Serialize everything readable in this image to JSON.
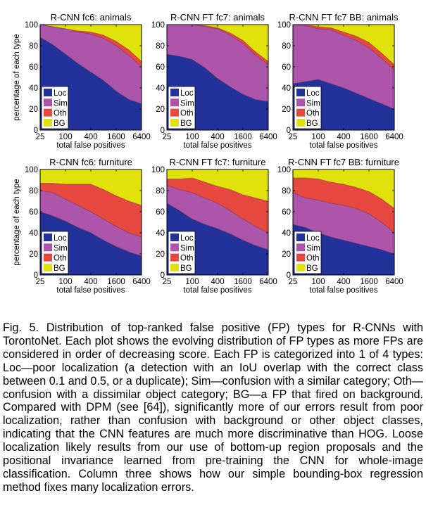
{
  "figure": {
    "caption": "Fig. 5. Distribution of top-ranked false positive (FP) types for R-CNNs with TorontoNet. Each plot shows the evolving distribution of FP types as more FPs are considered in order of decreasing score. Each FP is categorized into 1 of 4 types: Loc—poor localization (a detection with an IoU overlap with the correct class between 0.1 and 0.5, or a duplicate); Sim—confusion with a similar category; Oth—confusion with a dissimilar object category; BG—a FP that fired on background. Compared with DPM (see [64]), significantly more of our errors result from poor localization, rather than confusion with background or other object classes, indicating that the CNN features are much more discriminative than HOG. Loose localization likely results from our use of bottom-up region proposals and the positional invariance learned from pre-training the CNN for whole-image classification. Column three shows how our simple bounding-box regression method fixes many localization errors."
  },
  "colors": {
    "Loc": "#22329a",
    "Sim": "#ad55aa",
    "Oth": "#e6473e",
    "BG": "#e1e10b"
  },
  "chart_data": [
    {
      "type": "area",
      "title": "R-CNN fc6: animals",
      "xlabel": "total false positives",
      "ylabel": "percentage of each type",
      "x": [
        25,
        50,
        100,
        200,
        400,
        800,
        1600,
        3200,
        6400
      ],
      "x_scale": "log",
      "xticks": [
        25,
        100,
        400,
        1600,
        6400
      ],
      "xtick_labels": [
        "25",
        "100",
        "400",
        "1600",
        "6400"
      ],
      "ylim": [
        0,
        100
      ],
      "yticks": [
        0,
        20,
        40,
        60,
        80,
        100
      ],
      "legend": {
        "position": "bottom-left",
        "entries": [
          "Loc",
          "Sim",
          "Oth",
          "BG"
        ]
      },
      "series": [
        {
          "name": "Loc",
          "values": [
            88,
            81,
            72,
            63,
            55,
            47,
            37,
            29,
            25
          ]
        },
        {
          "name": "Sim",
          "values": [
            12,
            17,
            24,
            30,
            36,
            40,
            43,
            42,
            35
          ]
        },
        {
          "name": "Oth",
          "values": [
            0,
            0,
            0,
            1,
            2,
            3,
            4,
            5,
            5
          ]
        },
        {
          "name": "BG",
          "values": [
            0,
            2,
            4,
            6,
            7,
            10,
            16,
            24,
            35
          ]
        }
      ]
    },
    {
      "type": "area",
      "title": "R-CNN FT fc7: animals",
      "xlabel": "total false positives",
      "ylabel": "",
      "x": [
        25,
        50,
        100,
        200,
        400,
        800,
        1600,
        3200,
        6400
      ],
      "x_scale": "log",
      "xticks": [
        25,
        100,
        400,
        1600,
        6400
      ],
      "xtick_labels": [
        "25",
        "100",
        "400",
        "1600",
        "6400"
      ],
      "ylim": [
        0,
        100
      ],
      "yticks": [
        0,
        20,
        40,
        60,
        80,
        100
      ],
      "legend": {
        "position": "bottom-left",
        "entries": [
          "Loc",
          "Sim",
          "Oth",
          "BG"
        ]
      },
      "series": [
        {
          "name": "Loc",
          "values": [
            72,
            70,
            67,
            59,
            49,
            41,
            34,
            29,
            27
          ]
        },
        {
          "name": "Sim",
          "values": [
            28,
            30,
            33,
            39,
            47,
            49,
            48,
            42,
            35
          ]
        },
        {
          "name": "Oth",
          "values": [
            0,
            0,
            0,
            1,
            1,
            2,
            3,
            3,
            3
          ]
        },
        {
          "name": "BG",
          "values": [
            0,
            0,
            0,
            1,
            3,
            8,
            15,
            26,
            35
          ]
        }
      ]
    },
    {
      "type": "area",
      "title": "R-CNN FT fc7 BB: animals",
      "xlabel": "total false positives",
      "ylabel": "",
      "x": [
        25,
        50,
        100,
        200,
        400,
        800,
        1600,
        3200,
        6400
      ],
      "x_scale": "log",
      "xticks": [
        25,
        100,
        400,
        1600,
        6400
      ],
      "xtick_labels": [
        "25",
        "100",
        "400",
        "1600",
        "6400"
      ],
      "ylim": [
        0,
        100
      ],
      "yticks": [
        0,
        20,
        40,
        60,
        80,
        100
      ],
      "legend": {
        "position": "bottom-left",
        "entries": [
          "Loc",
          "Sim",
          "Oth",
          "BG"
        ]
      },
      "series": [
        {
          "name": "Loc",
          "values": [
            44,
            46,
            48,
            44,
            40,
            35,
            30,
            25,
            20
          ]
        },
        {
          "name": "Sim",
          "values": [
            56,
            53,
            48,
            51,
            50,
            50,
            48,
            43,
            37
          ]
        },
        {
          "name": "Oth",
          "values": [
            0,
            1,
            2,
            2,
            3,
            4,
            5,
            5,
            5
          ]
        },
        {
          "name": "BG",
          "values": [
            0,
            0,
            2,
            3,
            7,
            11,
            17,
            27,
            38
          ]
        }
      ]
    },
    {
      "type": "area",
      "title": "R-CNN fc6: furniture",
      "xlabel": "total false positives",
      "ylabel": "percentage of each type",
      "x": [
        25,
        50,
        100,
        200,
        400,
        800,
        1600,
        3200,
        6400
      ],
      "x_scale": "log",
      "xticks": [
        25,
        100,
        400,
        1600,
        6400
      ],
      "xtick_labels": [
        "25",
        "100",
        "400",
        "1600",
        "6400"
      ],
      "ylim": [
        0,
        100
      ],
      "yticks": [
        0,
        20,
        40,
        60,
        80,
        100
      ],
      "legend": {
        "position": "bottom-left",
        "entries": [
          "Loc",
          "Sim",
          "Oth",
          "BG"
        ]
      },
      "series": [
        {
          "name": "Loc",
          "values": [
            60,
            56,
            51,
            45,
            40,
            33,
            27,
            22,
            18
          ]
        },
        {
          "name": "Sim",
          "values": [
            20,
            22,
            21,
            21,
            20,
            20,
            19,
            18,
            18
          ]
        },
        {
          "name": "Oth",
          "values": [
            7,
            9,
            14,
            20,
            26,
            28,
            29,
            30,
            30
          ]
        },
        {
          "name": "BG",
          "values": [
            13,
            13,
            14,
            14,
            14,
            19,
            25,
            30,
            34
          ]
        }
      ]
    },
    {
      "type": "area",
      "title": "R-CNN FT fc7: furniture",
      "xlabel": "total false positives",
      "ylabel": "",
      "x": [
        25,
        50,
        100,
        200,
        400,
        800,
        1600,
        3200,
        6400
      ],
      "x_scale": "log",
      "xticks": [
        25,
        100,
        400,
        1600,
        6400
      ],
      "xtick_labels": [
        "25",
        "100",
        "400",
        "1600",
        "6400"
      ],
      "ylim": [
        0,
        100
      ],
      "yticks": [
        0,
        20,
        40,
        60,
        80,
        100
      ],
      "legend": {
        "position": "bottom-left",
        "entries": [
          "Loc",
          "Sim",
          "Oth",
          "BG"
        ]
      },
      "series": [
        {
          "name": "Loc",
          "values": [
            68,
            61,
            53,
            48,
            44,
            39,
            33,
            28,
            24
          ]
        },
        {
          "name": "Sim",
          "values": [
            17,
            20,
            25,
            25,
            24,
            22,
            20,
            18,
            16
          ]
        },
        {
          "name": "Oth",
          "values": [
            6,
            10,
            14,
            15,
            16,
            20,
            23,
            27,
            30
          ]
        },
        {
          "name": "BG",
          "values": [
            9,
            9,
            8,
            12,
            16,
            19,
            24,
            27,
            30
          ]
        }
      ]
    },
    {
      "type": "area",
      "title": "R-CNN FT fc7 BB: furniture",
      "xlabel": "total false positives",
      "ylabel": "",
      "x": [
        25,
        50,
        100,
        200,
        400,
        800,
        1600,
        3200,
        6400
      ],
      "x_scale": "log",
      "xticks": [
        25,
        100,
        400,
        1600,
        6400
      ],
      "xtick_labels": [
        "25",
        "100",
        "400",
        "1600",
        "6400"
      ],
      "ylim": [
        0,
        100
      ],
      "yticks": [
        0,
        20,
        40,
        60,
        80,
        100
      ],
      "legend": {
        "position": "bottom-left",
        "entries": [
          "Loc",
          "Sim",
          "Oth",
          "BG"
        ]
      },
      "series": [
        {
          "name": "Loc",
          "values": [
            48,
            45,
            40,
            36,
            33,
            30,
            27,
            24,
            20
          ]
        },
        {
          "name": "Sim",
          "values": [
            30,
            28,
            31,
            32,
            33,
            33,
            31,
            26,
            20
          ]
        },
        {
          "name": "Oth",
          "values": [
            14,
            19,
            20,
            20,
            20,
            20,
            21,
            22,
            23
          ]
        },
        {
          "name": "BG",
          "values": [
            8,
            8,
            9,
            12,
            14,
            17,
            21,
            28,
            37
          ]
        }
      ]
    }
  ]
}
